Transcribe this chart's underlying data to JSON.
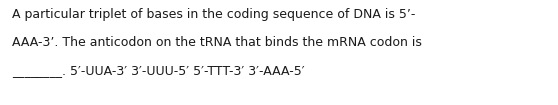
{
  "line1": "A particular triplet of bases in the coding sequence of DNA is 5’-",
  "line2": "AAA-3’. The anticodon on the tRNA that binds the mRNA codon is",
  "line3_blank": "________. 5′-UUA-3′ 3′-UUU-5′ 5′-TTT-3′ 3′-AAA-5′",
  "bg_color": "#ffffff",
  "text_color": "#1a1a1a",
  "font_size": 9.0,
  "fig_width": 5.58,
  "fig_height": 1.05,
  "dpi": 100
}
